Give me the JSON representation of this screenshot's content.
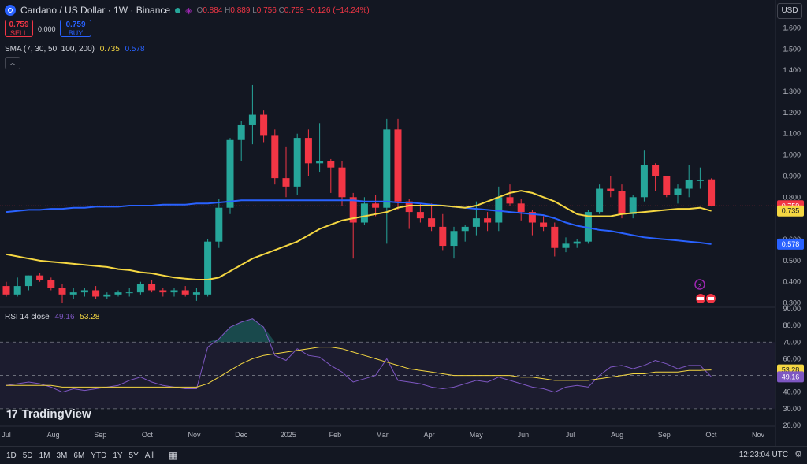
{
  "header": {
    "title": "Cardano / US Dollar · 1W · Binance",
    "ohlc": {
      "o_label": "O",
      "o": "0.884",
      "h_label": "H",
      "h": "0.889",
      "l_label": "L",
      "l": "0.756",
      "c_label": "C",
      "c": "0.759",
      "change": "−0.126 (−14.24%)"
    }
  },
  "trade": {
    "sell_price": "0.759",
    "sell_label": "SELL",
    "spread": "0.000",
    "buy_price": "0.759",
    "buy_label": "BUY"
  },
  "sma": {
    "label": "SMA (7, 30, 50, 100, 200)",
    "v1": "0.735",
    "v2": "0.578",
    "c1": "#f5d742",
    "c2": "#2962ff"
  },
  "rsi": {
    "label": "RSI 14 close",
    "v1": "49.16",
    "v2": "53.28",
    "c1": "#7e57c2",
    "c2": "#f5d742"
  },
  "currency": "USD",
  "price_axis": [
    "1.600",
    "1.500",
    "1.400",
    "1.300",
    "1.200",
    "1.100",
    "1.000",
    "0.900",
    "0.800",
    "0.600",
    "0.500",
    "0.400",
    "0.300"
  ],
  "price_tags": [
    {
      "text": "0.759",
      "value": 0.759,
      "bg": "#f23645",
      "fg": "#ffffff"
    },
    {
      "text": "0.735",
      "value": 0.735,
      "bg": "#f5d742",
      "fg": "#131722"
    },
    {
      "text": "0.578",
      "value": 0.578,
      "bg": "#2962ff",
      "fg": "#ffffff"
    }
  ],
  "rsi_axis": [
    "90.00",
    "80.00",
    "70.00",
    "60.00",
    "40.00",
    "30.00",
    "20.00"
  ],
  "rsi_tags": [
    {
      "text": "53.28",
      "value": 53.28,
      "bg": "#f5d742",
      "fg": "#131722"
    },
    {
      "text": "49.16",
      "value": 49.16,
      "bg": "#7e57c2",
      "fg": "#ffffff"
    }
  ],
  "time_axis": [
    "Jul",
    "Aug",
    "Sep",
    "Oct",
    "Nov",
    "Dec",
    "2025",
    "Feb",
    "Mar",
    "Apr",
    "May",
    "Jun",
    "Jul",
    "Aug",
    "Sep",
    "Oct",
    "Nov"
  ],
  "timeframes": [
    "1D",
    "5D",
    "1M",
    "3M",
    "6M",
    "YTD",
    "1Y",
    "5Y",
    "All"
  ],
  "clock": "12:23:04 UTC",
  "brand": "TradingView",
  "chart_data": {
    "type": "candlestick",
    "timeframe": "1W",
    "colors": {
      "up": "#26a69a",
      "down": "#f23645",
      "sma_fast": "#f5d742",
      "sma_slow": "#2962ff",
      "rsi": "#7e57c2",
      "rsi_ma": "#f5d742"
    },
    "candles": [
      [
        0.38,
        0.4,
        0.33,
        0.34
      ],
      [
        0.34,
        0.42,
        0.33,
        0.38
      ],
      [
        0.38,
        0.43,
        0.36,
        0.43
      ],
      [
        0.43,
        0.44,
        0.4,
        0.41
      ],
      [
        0.41,
        0.42,
        0.36,
        0.37
      ],
      [
        0.37,
        0.39,
        0.3,
        0.34
      ],
      [
        0.34,
        0.37,
        0.32,
        0.35
      ],
      [
        0.35,
        0.37,
        0.33,
        0.36
      ],
      [
        0.36,
        0.38,
        0.32,
        0.33
      ],
      [
        0.33,
        0.35,
        0.32,
        0.34
      ],
      [
        0.34,
        0.36,
        0.33,
        0.35
      ],
      [
        0.35,
        0.37,
        0.33,
        0.35
      ],
      [
        0.35,
        0.4,
        0.34,
        0.39
      ],
      [
        0.39,
        0.41,
        0.35,
        0.36
      ],
      [
        0.36,
        0.37,
        0.33,
        0.35
      ],
      [
        0.35,
        0.37,
        0.33,
        0.36
      ],
      [
        0.36,
        0.38,
        0.33,
        0.34
      ],
      [
        0.34,
        0.37,
        0.31,
        0.35
      ],
      [
        0.34,
        0.6,
        0.33,
        0.59
      ],
      [
        0.59,
        0.79,
        0.56,
        0.75
      ],
      [
        0.75,
        1.08,
        0.72,
        1.07
      ],
      [
        1.07,
        1.16,
        0.97,
        1.14
      ],
      [
        1.14,
        1.33,
        1.05,
        1.19
      ],
      [
        1.19,
        1.21,
        1.06,
        1.09
      ],
      [
        1.09,
        1.12,
        0.86,
        0.89
      ],
      [
        0.89,
        1.04,
        0.8,
        0.85
      ],
      [
        0.85,
        1.1,
        0.81,
        1.08
      ],
      [
        1.08,
        1.12,
        0.9,
        0.96
      ],
      [
        0.96,
        1.15,
        0.92,
        0.97
      ],
      [
        0.97,
        0.98,
        0.82,
        0.94
      ],
      [
        0.94,
        0.97,
        0.76,
        0.8
      ],
      [
        0.8,
        0.82,
        0.51,
        0.68
      ],
      [
        0.68,
        0.8,
        0.67,
        0.77
      ],
      [
        0.77,
        0.81,
        0.71,
        0.75
      ],
      [
        0.75,
        1.17,
        0.58,
        1.12
      ],
      [
        1.12,
        1.17,
        0.74,
        0.78
      ],
      [
        0.78,
        0.79,
        0.65,
        0.73
      ],
      [
        0.73,
        0.77,
        0.68,
        0.7
      ],
      [
        0.7,
        0.77,
        0.64,
        0.66
      ],
      [
        0.66,
        0.72,
        0.55,
        0.57
      ],
      [
        0.57,
        0.66,
        0.51,
        0.64
      ],
      [
        0.64,
        0.67,
        0.59,
        0.66
      ],
      [
        0.66,
        0.78,
        0.62,
        0.7
      ],
      [
        0.7,
        0.73,
        0.64,
        0.68
      ],
      [
        0.68,
        0.85,
        0.64,
        0.8
      ],
      [
        0.8,
        0.86,
        0.76,
        0.77
      ],
      [
        0.77,
        0.79,
        0.69,
        0.73
      ],
      [
        0.73,
        0.74,
        0.62,
        0.68
      ],
      [
        0.68,
        0.71,
        0.64,
        0.66
      ],
      [
        0.66,
        0.68,
        0.52,
        0.56
      ],
      [
        0.56,
        0.61,
        0.54,
        0.58
      ],
      [
        0.58,
        0.6,
        0.56,
        0.59
      ],
      [
        0.59,
        0.74,
        0.58,
        0.73
      ],
      [
        0.73,
        0.86,
        0.72,
        0.84
      ],
      [
        0.84,
        0.9,
        0.8,
        0.83
      ],
      [
        0.83,
        0.86,
        0.7,
        0.72
      ],
      [
        0.72,
        0.81,
        0.7,
        0.8
      ],
      [
        0.8,
        1.02,
        0.78,
        0.95
      ],
      [
        0.95,
        0.96,
        0.83,
        0.9
      ],
      [
        0.9,
        0.9,
        0.8,
        0.81
      ],
      [
        0.81,
        0.86,
        0.77,
        0.84
      ],
      [
        0.84,
        0.95,
        0.8,
        0.88
      ],
      [
        0.88,
        0.94,
        0.84,
        0.88
      ],
      [
        0.884,
        0.889,
        0.756,
        0.759
      ]
    ],
    "sma_fast": [
      0.53,
      0.52,
      0.51,
      0.5,
      0.495,
      0.49,
      0.485,
      0.48,
      0.475,
      0.47,
      0.46,
      0.455,
      0.445,
      0.44,
      0.43,
      0.42,
      0.415,
      0.41,
      0.41,
      0.42,
      0.45,
      0.48,
      0.51,
      0.53,
      0.55,
      0.57,
      0.59,
      0.62,
      0.65,
      0.67,
      0.69,
      0.7,
      0.71,
      0.72,
      0.73,
      0.75,
      0.76,
      0.76,
      0.76,
      0.76,
      0.755,
      0.75,
      0.76,
      0.78,
      0.8,
      0.82,
      0.83,
      0.82,
      0.8,
      0.78,
      0.75,
      0.72,
      0.71,
      0.71,
      0.71,
      0.72,
      0.725,
      0.73,
      0.735,
      0.74,
      0.745,
      0.745,
      0.75,
      0.735
    ],
    "sma_slow": [
      0.73,
      0.735,
      0.74,
      0.74,
      0.745,
      0.745,
      0.75,
      0.75,
      0.755,
      0.755,
      0.755,
      0.76,
      0.76,
      0.76,
      0.765,
      0.765,
      0.765,
      0.77,
      0.77,
      0.775,
      0.78,
      0.785,
      0.785,
      0.785,
      0.785,
      0.785,
      0.785,
      0.785,
      0.785,
      0.785,
      0.785,
      0.785,
      0.78,
      0.78,
      0.78,
      0.775,
      0.775,
      0.77,
      0.765,
      0.76,
      0.755,
      0.75,
      0.745,
      0.74,
      0.735,
      0.73,
      0.725,
      0.72,
      0.715,
      0.7,
      0.68,
      0.665,
      0.655,
      0.645,
      0.64,
      0.63,
      0.62,
      0.61,
      0.605,
      0.6,
      0.595,
      0.59,
      0.585,
      0.578
    ],
    "rsi": [
      44,
      45,
      46,
      45,
      43,
      40,
      42,
      41,
      42,
      43,
      44,
      47,
      49,
      46,
      44,
      43,
      42,
      42,
      67,
      72,
      79,
      82,
      84,
      79,
      62,
      59,
      66,
      62,
      61,
      56,
      52,
      46,
      48,
      50,
      60,
      47,
      46,
      45,
      43,
      42,
      43,
      45,
      47,
      46,
      49,
      47,
      45,
      43,
      42,
      40,
      43,
      44,
      43,
      50,
      55,
      56,
      54,
      56,
      59,
      57,
      54,
      56,
      56,
      49.16
    ],
    "rsi_ma": [
      44,
      44,
      44,
      44,
      44,
      43,
      43,
      43,
      43,
      43,
      43,
      43,
      43,
      43,
      43,
      43,
      43,
      43,
      45,
      49,
      53,
      57,
      60,
      62,
      63,
      64,
      65,
      66,
      67,
      67,
      66,
      64,
      62,
      60,
      58,
      56,
      54,
      53,
      52,
      51,
      50,
      50,
      50,
      50,
      50,
      50,
      49,
      49,
      48,
      47,
      47,
      47,
      47,
      48,
      49,
      50,
      51,
      51,
      52,
      52,
      52,
      53,
      53,
      53.28
    ],
    "price_range": [
      0.25,
      1.65
    ],
    "rsi_range": [
      20,
      90
    ],
    "rsi_levels": [
      70,
      50,
      30
    ]
  }
}
